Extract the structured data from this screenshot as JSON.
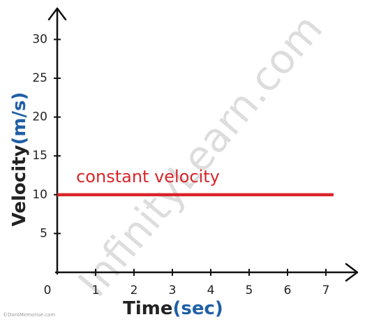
{
  "chart_data": {
    "type": "line",
    "y_label": [
      "Velocity",
      "(m/s)"
    ],
    "x_label": [
      "Time",
      "(sec)"
    ],
    "annotation": "constant velocity",
    "watermark": "InfinityLearn.com",
    "credit": "©DontMemorise.com",
    "x": [
      0,
      7.2
    ],
    "series": [
      {
        "name": "constant velocity",
        "color": "#d9252a",
        "values": [
          10,
          10
        ]
      }
    ],
    "xlim": [
      0,
      7.8
    ],
    "ylim": [
      0,
      34
    ],
    "xticks": [
      0,
      1,
      2,
      3,
      4,
      5,
      6,
      7
    ],
    "yticks": [
      5,
      10,
      15,
      20,
      25,
      30
    ],
    "grid": false
  }
}
